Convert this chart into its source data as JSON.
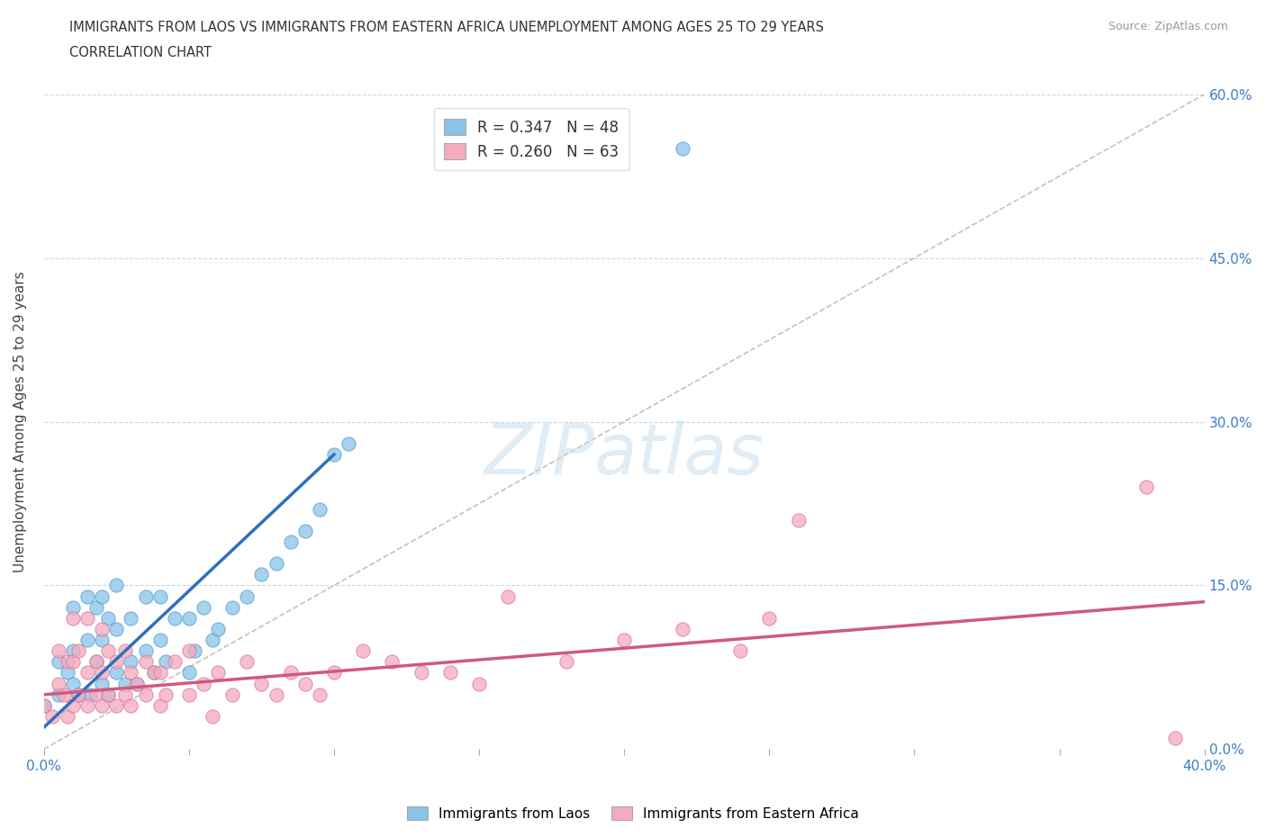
{
  "title_line1": "IMMIGRANTS FROM LAOS VS IMMIGRANTS FROM EASTERN AFRICA UNEMPLOYMENT AMONG AGES 25 TO 29 YEARS",
  "title_line2": "CORRELATION CHART",
  "source": "Source: ZipAtlas.com",
  "ylabel": "Unemployment Among Ages 25 to 29 years",
  "xlim": [
    0.0,
    0.4
  ],
  "ylim": [
    0.0,
    0.6
  ],
  "xtick_positions": [
    0.0,
    0.05,
    0.1,
    0.15,
    0.2,
    0.25,
    0.3,
    0.35,
    0.4
  ],
  "xtick_labels": [
    "0.0%",
    "",
    "",
    "",
    "",
    "",
    "",
    "",
    "40.0%"
  ],
  "ytick_positions": [
    0.0,
    0.15,
    0.3,
    0.45,
    0.6
  ],
  "ytick_labels_right": [
    "0.0%",
    "15.0%",
    "30.0%",
    "45.0%",
    "60.0%"
  ],
  "laos_color": "#89C4E8",
  "laos_edge_color": "#5A9FD4",
  "eastern_africa_color": "#F4AABF",
  "eastern_africa_edge_color": "#E07898",
  "laos_line_color": "#2E6FBF",
  "eastern_africa_line_color": "#D05880",
  "diagonal_color": "#BBBBBB",
  "grid_color": "#C8D8E8",
  "laos_R": 0.347,
  "laos_N": 48,
  "eastern_africa_R": 0.26,
  "eastern_africa_N": 63,
  "watermark": "ZIPatlas",
  "laos_scatter_x": [
    0.0,
    0.005,
    0.005,
    0.008,
    0.01,
    0.01,
    0.01,
    0.012,
    0.015,
    0.015,
    0.016,
    0.018,
    0.018,
    0.02,
    0.02,
    0.02,
    0.022,
    0.022,
    0.025,
    0.025,
    0.025,
    0.028,
    0.03,
    0.03,
    0.032,
    0.035,
    0.035,
    0.038,
    0.04,
    0.04,
    0.042,
    0.045,
    0.05,
    0.05,
    0.052,
    0.055,
    0.058,
    0.06,
    0.065,
    0.07,
    0.075,
    0.08,
    0.085,
    0.09,
    0.095,
    0.1,
    0.105,
    0.22
  ],
  "laos_scatter_y": [
    0.04,
    0.05,
    0.08,
    0.07,
    0.06,
    0.09,
    0.13,
    0.05,
    0.1,
    0.14,
    0.05,
    0.08,
    0.13,
    0.06,
    0.1,
    0.14,
    0.05,
    0.12,
    0.07,
    0.11,
    0.15,
    0.06,
    0.08,
    0.12,
    0.06,
    0.09,
    0.14,
    0.07,
    0.1,
    0.14,
    0.08,
    0.12,
    0.07,
    0.12,
    0.09,
    0.13,
    0.1,
    0.11,
    0.13,
    0.14,
    0.16,
    0.17,
    0.19,
    0.2,
    0.22,
    0.27,
    0.28,
    0.55
  ],
  "eastern_africa_scatter_x": [
    0.0,
    0.003,
    0.005,
    0.005,
    0.007,
    0.008,
    0.008,
    0.01,
    0.01,
    0.01,
    0.012,
    0.012,
    0.015,
    0.015,
    0.015,
    0.018,
    0.018,
    0.02,
    0.02,
    0.02,
    0.022,
    0.022,
    0.025,
    0.025,
    0.028,
    0.028,
    0.03,
    0.03,
    0.032,
    0.035,
    0.035,
    0.038,
    0.04,
    0.04,
    0.042,
    0.045,
    0.05,
    0.05,
    0.055,
    0.058,
    0.06,
    0.065,
    0.07,
    0.075,
    0.08,
    0.085,
    0.09,
    0.095,
    0.1,
    0.11,
    0.12,
    0.13,
    0.14,
    0.15,
    0.16,
    0.18,
    0.2,
    0.22,
    0.24,
    0.25,
    0.26,
    0.38,
    0.39
  ],
  "eastern_africa_scatter_y": [
    0.04,
    0.03,
    0.06,
    0.09,
    0.05,
    0.08,
    0.03,
    0.04,
    0.08,
    0.12,
    0.05,
    0.09,
    0.04,
    0.07,
    0.12,
    0.05,
    0.08,
    0.04,
    0.07,
    0.11,
    0.05,
    0.09,
    0.04,
    0.08,
    0.05,
    0.09,
    0.04,
    0.07,
    0.06,
    0.05,
    0.08,
    0.07,
    0.04,
    0.07,
    0.05,
    0.08,
    0.05,
    0.09,
    0.06,
    0.03,
    0.07,
    0.05,
    0.08,
    0.06,
    0.05,
    0.07,
    0.06,
    0.05,
    0.07,
    0.09,
    0.08,
    0.07,
    0.07,
    0.06,
    0.14,
    0.08,
    0.1,
    0.11,
    0.09,
    0.12,
    0.21,
    0.24,
    0.01
  ],
  "laos_line_x": [
    0.0,
    0.1
  ],
  "laos_line_y": [
    0.02,
    0.27
  ],
  "ea_line_x": [
    0.0,
    0.4
  ],
  "ea_line_y": [
    0.05,
    0.135
  ]
}
